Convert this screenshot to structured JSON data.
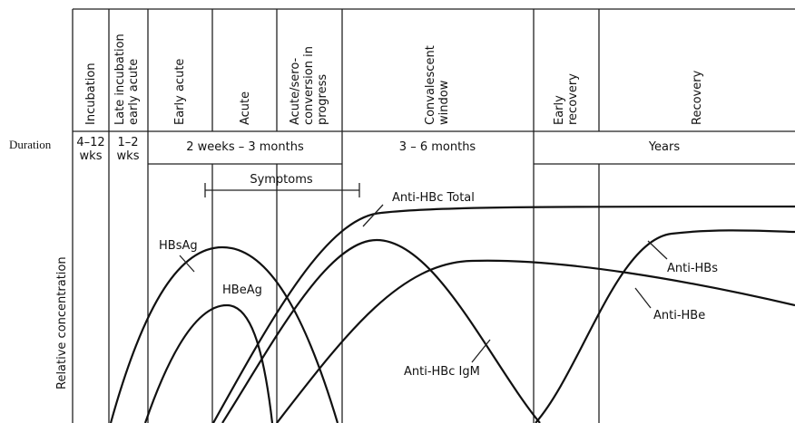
{
  "phases": [
    {
      "lines": [
        "Incubation"
      ]
    },
    {
      "lines": [
        "Late incubation",
        "early acute"
      ]
    },
    {
      "lines": [
        "Early acute"
      ]
    },
    {
      "lines": [
        "Acute"
      ]
    },
    {
      "lines": [
        "Acute/sero-",
        "conversion in",
        "progress"
      ]
    },
    {
      "lines": [
        "Convalescent",
        "window"
      ]
    },
    {
      "lines": [
        "Early",
        "recovery"
      ]
    },
    {
      "lines": [
        "Recovery"
      ]
    }
  ],
  "duration": {
    "label": "Duration",
    "incubation": [
      "4–12",
      "wks"
    ],
    "late": [
      "1–2",
      "wks"
    ],
    "acute": "2 weeks – 3 months",
    "convalescent": "3 – 6 months",
    "recovery": "Years"
  },
  "symptoms": "Symptoms",
  "y_label": "Relative concentration",
  "curves": {
    "hbsag": "HBsAg",
    "hbeag": "HBeAg",
    "anti_hbc_total": "Anti-HBc Total",
    "anti_hbc_igm": "Anti-HBc IgM",
    "anti_hbs": "Anti-HBs",
    "anti_hbe": "Anti-HBe"
  }
}
